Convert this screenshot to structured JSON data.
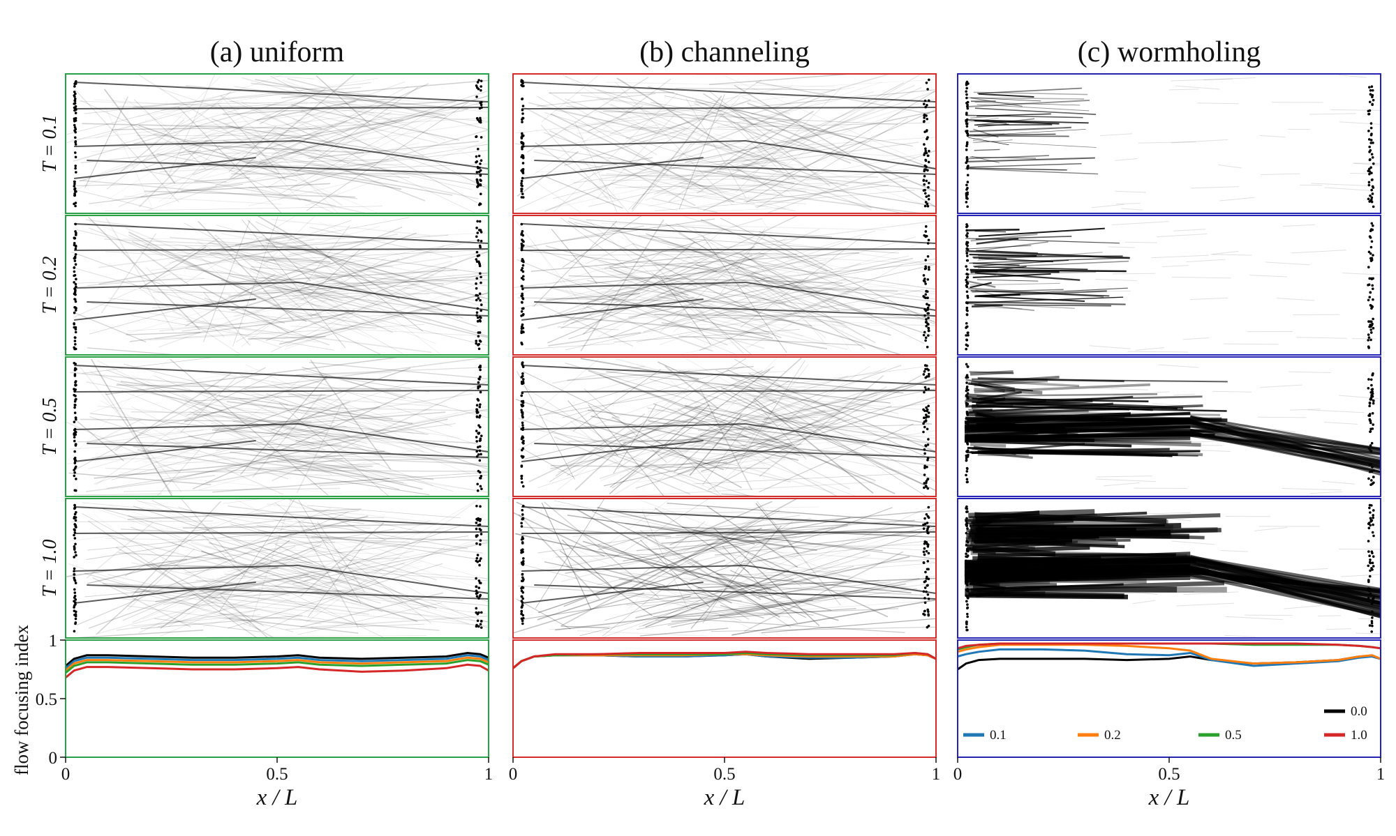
{
  "figure": {
    "columns": [
      {
        "key": "a",
        "title": "(a) uniform",
        "color": "#27a046"
      },
      {
        "key": "b",
        "title": "(b) channeling",
        "color": "#d42a2a"
      },
      {
        "key": "c",
        "title": "(c) wormholing",
        "color": "#2323b8"
      }
    ],
    "rows": [
      {
        "label": "T = 0.1",
        "T": 0.1
      },
      {
        "label": "T = 0.2",
        "T": 0.2
      },
      {
        "label": "T = 0.5",
        "T": 0.5
      },
      {
        "label": "T = 1.0",
        "T": 1.0
      }
    ],
    "x_ticks": [
      "0",
      "0.5",
      "1"
    ],
    "y_ticks": [
      "0",
      "0.5",
      "1"
    ],
    "x_axis_label": "x / L",
    "y_axis_label": "flow focusing index"
  },
  "chart_data": {
    "type": "line",
    "title": "",
    "xlabel": "x / L",
    "ylabel": "flow focusing index",
    "xlim": [
      0,
      1
    ],
    "ylim": [
      0,
      1
    ],
    "legend": [
      {
        "label": "0.0",
        "color": "#000000"
      },
      {
        "label": "0.1",
        "color": "#1f77b4"
      },
      {
        "label": "0.2",
        "color": "#ff7f0e"
      },
      {
        "label": "0.5",
        "color": "#2ca02c"
      },
      {
        "label": "1.0",
        "color": "#d62728"
      }
    ],
    "panels": [
      {
        "name": "uniform",
        "x": [
          0,
          0.02,
          0.05,
          0.1,
          0.2,
          0.3,
          0.4,
          0.5,
          0.55,
          0.6,
          0.7,
          0.8,
          0.9,
          0.95,
          0.98,
          1.0
        ],
        "series": [
          {
            "name": "0.0",
            "values": [
              0.78,
              0.84,
              0.87,
              0.87,
              0.86,
              0.85,
              0.85,
              0.86,
              0.87,
              0.85,
              0.84,
              0.85,
              0.86,
              0.89,
              0.88,
              0.85
            ]
          },
          {
            "name": "0.1",
            "values": [
              0.76,
              0.82,
              0.85,
              0.85,
              0.84,
              0.83,
              0.83,
              0.84,
              0.85,
              0.83,
              0.82,
              0.83,
              0.84,
              0.87,
              0.86,
              0.83
            ]
          },
          {
            "name": "0.2",
            "values": [
              0.74,
              0.8,
              0.83,
              0.83,
              0.82,
              0.81,
              0.81,
              0.82,
              0.83,
              0.81,
              0.8,
              0.81,
              0.82,
              0.85,
              0.84,
              0.81
            ]
          },
          {
            "name": "0.5",
            "values": [
              0.72,
              0.78,
              0.81,
              0.81,
              0.8,
              0.79,
              0.79,
              0.8,
              0.81,
              0.79,
              0.78,
              0.79,
              0.8,
              0.83,
              0.82,
              0.79
            ]
          },
          {
            "name": "1.0",
            "values": [
              0.68,
              0.74,
              0.77,
              0.77,
              0.76,
              0.75,
              0.75,
              0.76,
              0.77,
              0.75,
              0.73,
              0.74,
              0.76,
              0.79,
              0.78,
              0.74
            ]
          }
        ]
      },
      {
        "name": "channeling",
        "x": [
          0,
          0.02,
          0.05,
          0.1,
          0.2,
          0.3,
          0.4,
          0.5,
          0.55,
          0.6,
          0.7,
          0.8,
          0.9,
          0.95,
          0.98,
          1.0
        ],
        "series": [
          {
            "name": "0.0",
            "values": [
              0.76,
              0.82,
              0.86,
              0.87,
              0.87,
              0.86,
              0.86,
              0.87,
              0.88,
              0.86,
              0.84,
              0.85,
              0.86,
              0.88,
              0.87,
              0.84
            ]
          },
          {
            "name": "0.1",
            "values": [
              0.76,
              0.82,
              0.86,
              0.87,
              0.87,
              0.86,
              0.86,
              0.87,
              0.88,
              0.86,
              0.85,
              0.85,
              0.86,
              0.88,
              0.87,
              0.84
            ]
          },
          {
            "name": "0.2",
            "values": [
              0.76,
              0.82,
              0.86,
              0.87,
              0.87,
              0.87,
              0.87,
              0.88,
              0.88,
              0.87,
              0.86,
              0.86,
              0.86,
              0.88,
              0.87,
              0.84
            ]
          },
          {
            "name": "0.5",
            "values": [
              0.76,
              0.82,
              0.86,
              0.87,
              0.88,
              0.88,
              0.88,
              0.88,
              0.89,
              0.88,
              0.87,
              0.87,
              0.87,
              0.89,
              0.88,
              0.84
            ]
          },
          {
            "name": "1.0",
            "values": [
              0.76,
              0.82,
              0.86,
              0.88,
              0.88,
              0.89,
              0.89,
              0.89,
              0.9,
              0.89,
              0.88,
              0.88,
              0.88,
              0.89,
              0.88,
              0.84
            ]
          }
        ]
      },
      {
        "name": "wormholing",
        "x": [
          0,
          0.02,
          0.05,
          0.1,
          0.2,
          0.3,
          0.4,
          0.5,
          0.55,
          0.6,
          0.7,
          0.8,
          0.9,
          0.95,
          0.98,
          1.0
        ],
        "series": [
          {
            "name": "0.0",
            "values": [
              0.75,
              0.8,
              0.83,
              0.84,
              0.84,
              0.84,
              0.83,
              0.84,
              0.86,
              0.83,
              0.8,
              0.81,
              0.83,
              0.86,
              0.86,
              0.84
            ]
          },
          {
            "name": "0.1",
            "values": [
              0.86,
              0.88,
              0.9,
              0.92,
              0.92,
              0.91,
              0.88,
              0.87,
              0.89,
              0.83,
              0.78,
              0.8,
              0.82,
              0.85,
              0.86,
              0.84
            ]
          },
          {
            "name": "0.2",
            "values": [
              0.9,
              0.92,
              0.94,
              0.96,
              0.96,
              0.96,
              0.95,
              0.93,
              0.91,
              0.84,
              0.8,
              0.81,
              0.83,
              0.86,
              0.87,
              0.84
            ]
          },
          {
            "name": "0.5",
            "values": [
              0.92,
              0.94,
              0.96,
              0.97,
              0.97,
              0.97,
              0.97,
              0.97,
              0.97,
              0.97,
              0.96,
              0.96,
              0.96,
              0.95,
              0.94,
              0.93
            ]
          },
          {
            "name": "1.0",
            "values": [
              0.93,
              0.95,
              0.96,
              0.97,
              0.97,
              0.97,
              0.97,
              0.97,
              0.97,
              0.97,
              0.97,
              0.97,
              0.96,
              0.95,
              0.94,
              0.93
            ]
          }
        ]
      }
    ]
  }
}
